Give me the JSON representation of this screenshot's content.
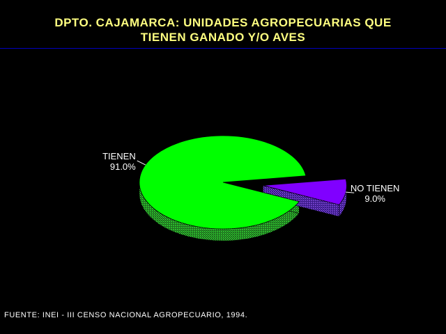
{
  "title_lines": [
    "DPTO. CAJAMARCA: UNIDADES AGROPECUARIAS QUE",
    "TIENEN GANADO Y/O AVES"
  ],
  "source": "FUENTE: INEI - III CENSO NACIONAL AGROPECUARIO, 1994.",
  "chart_data": {
    "type": "pie",
    "title": "DPTO. CAJAMARCA: UNIDADES AGROPECUARIAS QUE TIENEN GANADO Y/O AVES",
    "three_d": true,
    "exploded_slice": "NO TIENEN",
    "slices": [
      {
        "label": "TIENEN",
        "value": 91.0,
        "value_label": "91.0%",
        "color": "#00ff00",
        "side_color": "#2a8a2a"
      },
      {
        "label": "NO TIENEN",
        "value": 9.0,
        "value_label": "9.0%",
        "color": "#8000ff",
        "side_color": "#4a2a9a"
      }
    ]
  }
}
